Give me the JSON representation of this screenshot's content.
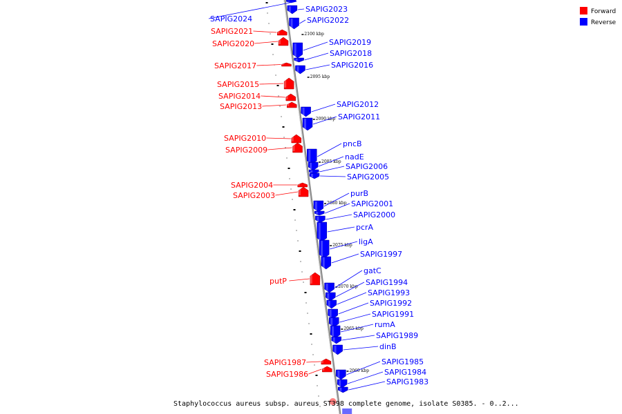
{
  "caption": "Staphylococcus aureus subsp. aureus ST398 complete genome, isolate S0385. - 0..2...",
  "legend": [
    {
      "label": "Forward",
      "color": "#ff0000"
    },
    {
      "label": "Reverse",
      "color": "#0000ff"
    }
  ],
  "colors": {
    "forward": "#ff0000",
    "reverse": "#0000ff",
    "backbone": "#888888"
  },
  "kbp_marks": [
    "2100 kbp",
    "2095 kbp",
    "2090 kbp",
    "2085 kbp",
    "2080 kbp",
    "2075 kbp",
    "2070 kbp",
    "2065 kbp",
    "2060 kbp"
  ],
  "genes": [
    {
      "name": "SAPIG2024",
      "strand": "reverse"
    },
    {
      "name": "SAPIG2023",
      "strand": "reverse"
    },
    {
      "name": "SAPIG2022",
      "strand": "reverse"
    },
    {
      "name": "SAPIG2021",
      "strand": "forward"
    },
    {
      "name": "SAPIG2020",
      "strand": "forward"
    },
    {
      "name": "SAPIG2019",
      "strand": "reverse"
    },
    {
      "name": "SAPIG2018",
      "strand": "reverse"
    },
    {
      "name": "SAPIG2017",
      "strand": "forward"
    },
    {
      "name": "SAPIG2016",
      "strand": "reverse"
    },
    {
      "name": "SAPIG2015",
      "strand": "forward"
    },
    {
      "name": "SAPIG2014",
      "strand": "forward"
    },
    {
      "name": "SAPIG2013",
      "strand": "forward"
    },
    {
      "name": "SAPIG2012",
      "strand": "reverse"
    },
    {
      "name": "SAPIG2011",
      "strand": "reverse"
    },
    {
      "name": "SAPIG2010",
      "strand": "forward"
    },
    {
      "name": "SAPIG2009",
      "strand": "forward"
    },
    {
      "name": "pncB",
      "strand": "reverse"
    },
    {
      "name": "nadE",
      "strand": "reverse"
    },
    {
      "name": "SAPIG2006",
      "strand": "reverse"
    },
    {
      "name": "SAPIG2005",
      "strand": "reverse"
    },
    {
      "name": "SAPIG2004",
      "strand": "forward"
    },
    {
      "name": "SAPIG2003",
      "strand": "forward"
    },
    {
      "name": "purB",
      "strand": "reverse"
    },
    {
      "name": "SAPIG2001",
      "strand": "reverse"
    },
    {
      "name": "SAPIG2000",
      "strand": "reverse"
    },
    {
      "name": "pcrA",
      "strand": "reverse"
    },
    {
      "name": "ligA",
      "strand": "reverse"
    },
    {
      "name": "SAPIG1997",
      "strand": "reverse"
    },
    {
      "name": "putP",
      "strand": "forward"
    },
    {
      "name": "gatC",
      "strand": "reverse"
    },
    {
      "name": "SAPIG1994",
      "strand": "reverse"
    },
    {
      "name": "SAPIG1993",
      "strand": "reverse"
    },
    {
      "name": "SAPIG1992",
      "strand": "reverse"
    },
    {
      "name": "SAPIG1991",
      "strand": "reverse"
    },
    {
      "name": "rumA",
      "strand": "reverse"
    },
    {
      "name": "SAPIG1989",
      "strand": "reverse"
    },
    {
      "name": "dinB",
      "strand": "reverse"
    },
    {
      "name": "SAPIG1987",
      "strand": "forward"
    },
    {
      "name": "SAPIG1986",
      "strand": "forward"
    },
    {
      "name": "SAPIG1985",
      "strand": "reverse"
    },
    {
      "name": "SAPIG1984",
      "strand": "reverse"
    },
    {
      "name": "SAPIG1983",
      "strand": "reverse"
    }
  ]
}
